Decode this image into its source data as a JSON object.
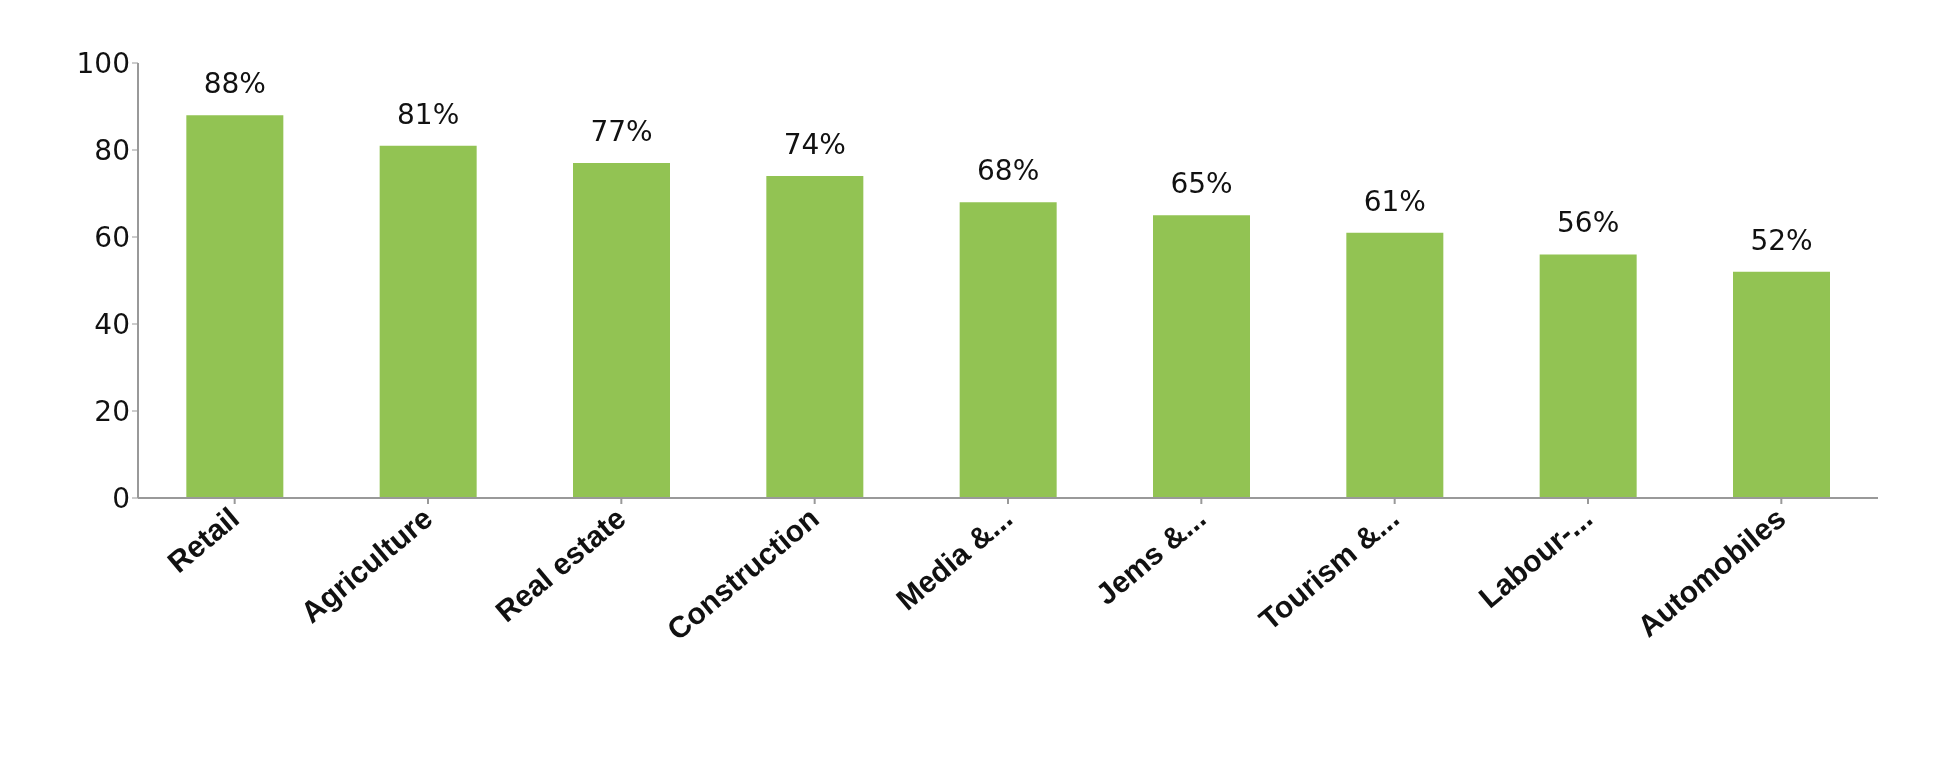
{
  "chart_data": {
    "type": "bar",
    "categories": [
      "Retail",
      "Agriculture",
      "Real estate",
      "Construction",
      "Media &...",
      "Jems &...",
      "Tourism &...",
      "Labour-...",
      "Automobiles"
    ],
    "values": [
      88,
      81,
      77,
      74,
      68,
      65,
      61,
      56,
      52
    ],
    "value_labels": [
      "88%",
      "81%",
      "77%",
      "74%",
      "68%",
      "65%",
      "61%",
      "56%",
      "52%"
    ],
    "color": "#92c353",
    "ylim": [
      0,
      100
    ],
    "yticks": [
      0,
      20,
      40,
      60,
      80,
      100
    ],
    "grid": false
  }
}
